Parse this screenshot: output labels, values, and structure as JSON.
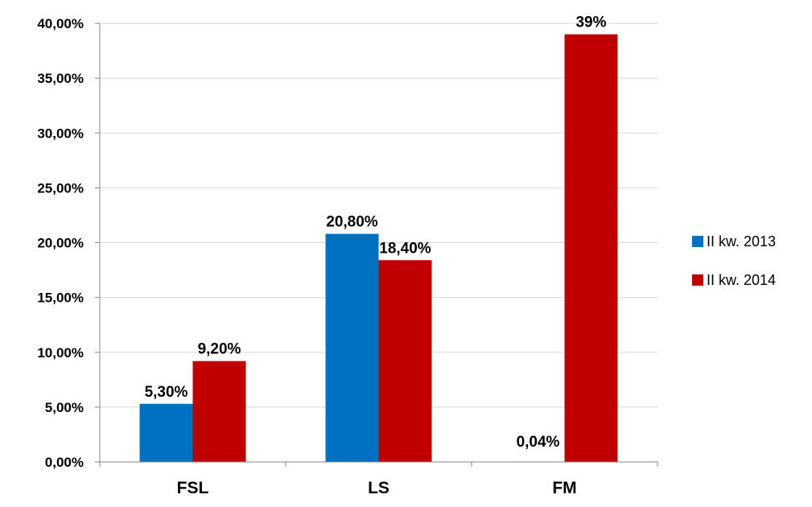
{
  "chart_data": {
    "type": "bar",
    "categories": [
      "FSL",
      "LS",
      "FM"
    ],
    "series": [
      {
        "name": "II kw. 2013",
        "values": [
          5.3,
          20.8,
          0.04
        ],
        "labels": [
          "5,30%",
          "20,80%",
          "0,04%"
        ],
        "color": "#0070C0"
      },
      {
        "name": "II kw. 2014",
        "values": [
          9.2,
          18.4,
          39.0
        ],
        "labels": [
          "9,20%",
          "18,40%",
          "39%"
        ],
        "color": "#C00000"
      }
    ],
    "ylim": [
      0,
      40
    ],
    "yticks": [
      0,
      5,
      10,
      15,
      20,
      25,
      30,
      35,
      40
    ],
    "ytick_labels": [
      "0,00%",
      "5,00%",
      "10,00%",
      "15,00%",
      "20,00%",
      "25,00%",
      "30,00%",
      "35,00%",
      "40,00%"
    ],
    "grid": true,
    "legend_position": "right",
    "title": "",
    "xlabel": "",
    "ylabel": ""
  }
}
